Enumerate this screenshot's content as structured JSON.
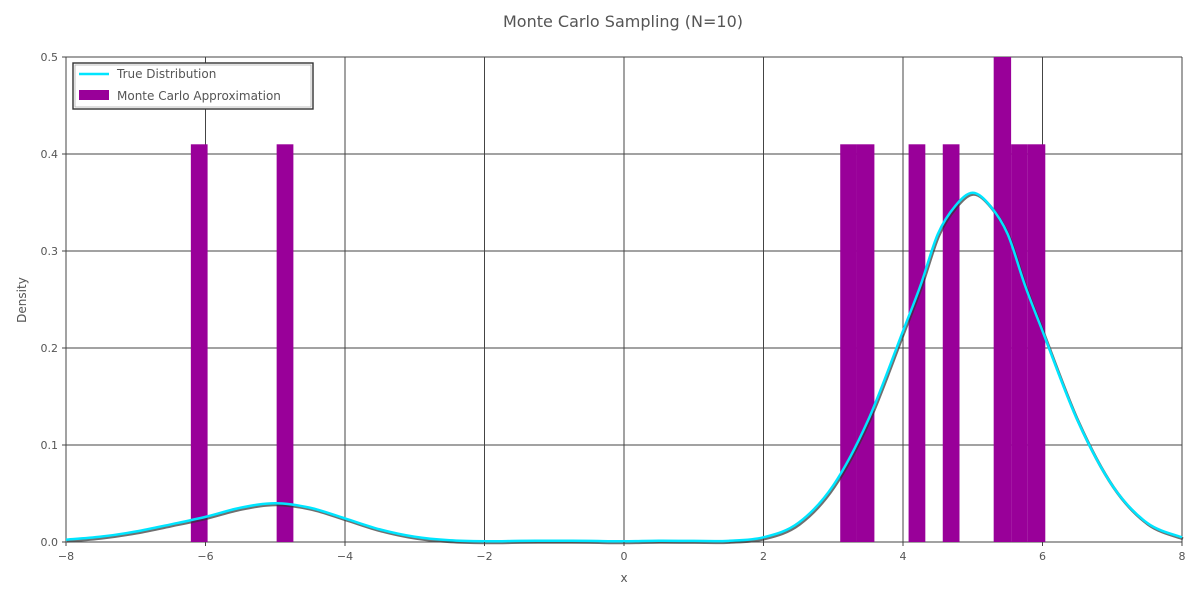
{
  "chart_data": {
    "type": "bar",
    "title": "Monte Carlo Sampling (N=10)",
    "xlabel": "x",
    "ylabel": "Density",
    "xlim": [
      -8,
      8
    ],
    "ylim": [
      0,
      0.5
    ],
    "xticks": [
      -8,
      -6,
      -4,
      -2,
      0,
      2,
      4,
      6,
      8
    ],
    "xtick_labels": [
      "−8",
      "−6",
      "−4",
      "−2",
      "0",
      "2",
      "4",
      "6",
      "8"
    ],
    "yticks": [
      0,
      0.1,
      0.2,
      0.3,
      0.4,
      0.5
    ],
    "ytick_labels": [
      "0.0",
      "0.1",
      "0.2",
      "0.3",
      "0.4",
      "0.5"
    ],
    "grid": true,
    "legend_position": "top-left",
    "colors": {
      "histogram": "#990099",
      "curve": "#00e5ff",
      "curve_shadow": "#333333",
      "grid": "#444444",
      "text": "#555555"
    },
    "series": [
      {
        "name": "True Distribution",
        "type": "line",
        "color": "#00e5ff",
        "x": [
          -8,
          -7.5,
          -7,
          -6.5,
          -6,
          -5.5,
          -5,
          -4.5,
          -4,
          -3.5,
          -3,
          -2.5,
          -2,
          -1.5,
          -1,
          -0.5,
          0,
          0.5,
          1,
          1.5,
          2,
          2.5,
          3,
          3.5,
          4,
          4.25,
          4.5,
          4.75,
          5,
          5.25,
          5.5,
          5.75,
          6,
          6.5,
          7,
          7.5,
          8
        ],
        "y": [
          0.0024,
          0.0055,
          0.0108,
          0.0181,
          0.0259,
          0.0353,
          0.04,
          0.0353,
          0.0243,
          0.013,
          0.0054,
          0.0018,
          0.0008,
          0.0011,
          0.0013,
          0.0011,
          0.0008,
          0.0013,
          0.0011,
          0.0012,
          0.0048,
          0.0197,
          0.0583,
          0.1256,
          0.2175,
          0.2643,
          0.3175,
          0.3465,
          0.36,
          0.3465,
          0.3175,
          0.2643,
          0.2175,
          0.1256,
          0.0583,
          0.0197,
          0.0048
        ]
      },
      {
        "name": "Monte Carlo Approximation",
        "type": "bar",
        "color": "#990099",
        "bins": [
          {
            "x0": -6.21,
            "x1": -5.97,
            "height": 0.41
          },
          {
            "x0": -4.98,
            "x1": -4.74,
            "height": 0.41
          },
          {
            "x0": 3.1,
            "x1": 3.34,
            "height": 0.41
          },
          {
            "x0": 3.34,
            "x1": 3.59,
            "height": 0.41
          },
          {
            "x0": 4.08,
            "x1": 4.32,
            "height": 0.41
          },
          {
            "x0": 4.57,
            "x1": 4.81,
            "height": 0.41
          },
          {
            "x0": 5.3,
            "x1": 5.55,
            "height": 0.51
          },
          {
            "x0": 5.55,
            "x1": 5.79,
            "height": 0.41
          },
          {
            "x0": 5.79,
            "x1": 6.04,
            "height": 0.41
          }
        ]
      }
    ]
  }
}
